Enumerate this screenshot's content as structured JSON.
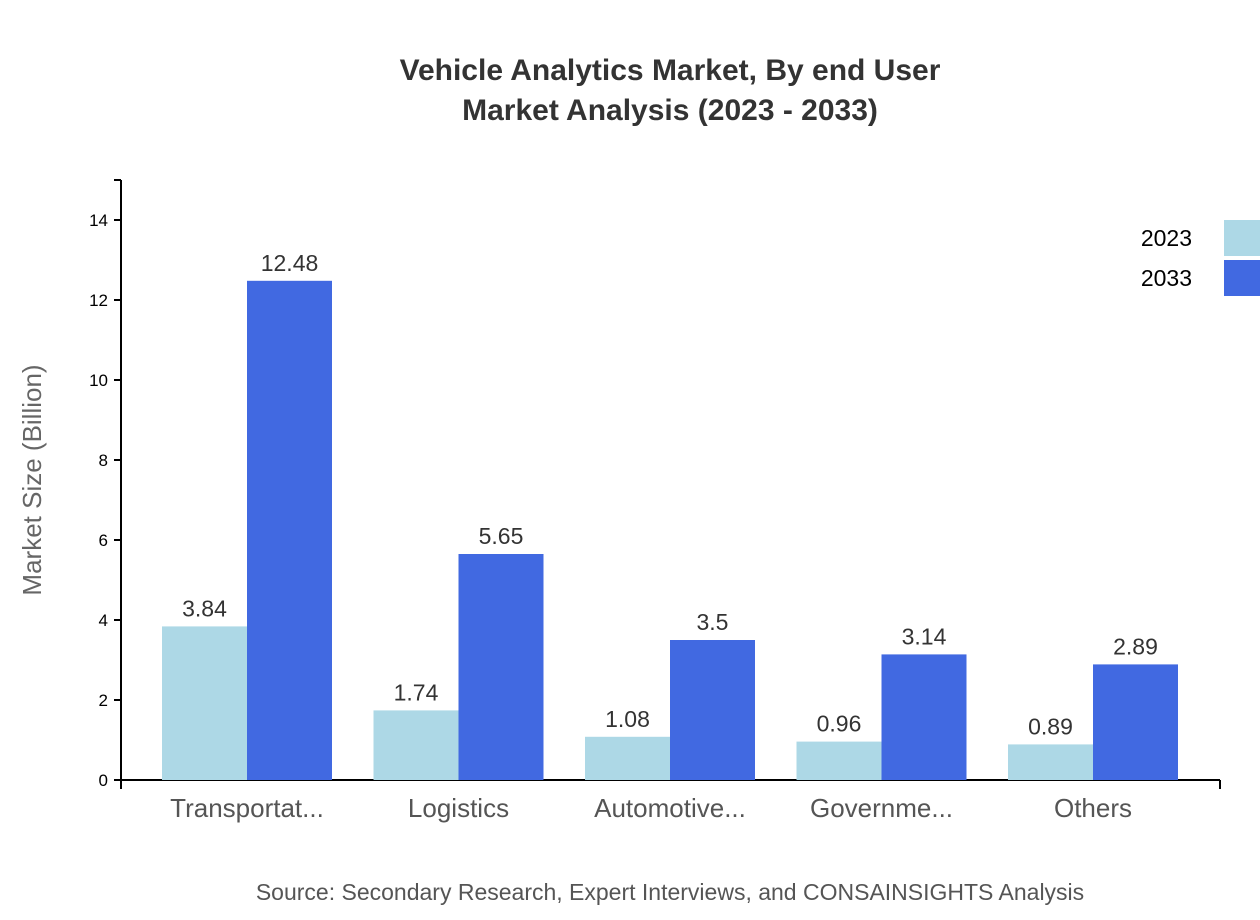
{
  "chart_data": {
    "type": "bar",
    "title_line1": "Vehicle Analytics Market, By end User",
    "title_line2": "Market Analysis (2023 - 2033)",
    "xlabel": "",
    "ylabel": "Market Size (Billion)",
    "ylim": [
      0,
      15
    ],
    "yticks": [
      0,
      2,
      4,
      6,
      8,
      10,
      12,
      14
    ],
    "categories": [
      "Transportat...",
      "Logistics",
      "Automotive...",
      "Governme...",
      "Others"
    ],
    "series": [
      {
        "name": "2023",
        "color": "#add8e6",
        "values": [
          3.84,
          1.74,
          1.08,
          0.96,
          0.89
        ]
      },
      {
        "name": "2033",
        "color": "#4169e1",
        "values": [
          12.48,
          5.65,
          3.5,
          3.14,
          2.89
        ]
      }
    ],
    "legend_position": "top-right",
    "grid": false,
    "source": "Source: Secondary Research, Expert Interviews, and CONSAINSIGHTS Analysis"
  }
}
